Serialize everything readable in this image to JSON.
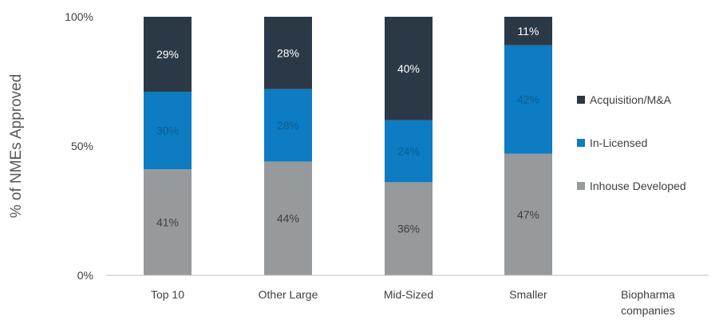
{
  "chart_data": {
    "type": "bar",
    "stacked": true,
    "ylabel": "% of NMEs Approved",
    "ylim": [
      0,
      100
    ],
    "yticks": [
      {
        "value": 0,
        "label": "0%"
      },
      {
        "value": 50,
        "label": "50%"
      },
      {
        "value": 100,
        "label": "100%"
      }
    ],
    "categories": [
      "Top 10",
      "Other Large",
      "Mid-Sized",
      "Smaller"
    ],
    "axis_footer": [
      "Biopharma",
      "companies"
    ],
    "series": [
      {
        "name": "Inhouse Developed",
        "color": "#979a9d",
        "label_color": "#3b3f44",
        "values": [
          41,
          44,
          36,
          47
        ],
        "labels": [
          "41%",
          "44%",
          "36%",
          "47%"
        ]
      },
      {
        "name": "In-Licensed",
        "color": "#0d7cc2",
        "label_color": "#0a5d93",
        "values": [
          30,
          28,
          24,
          42
        ],
        "labels": [
          "30%",
          "28%",
          "24%",
          "42%"
        ]
      },
      {
        "name": "Acquisition/M&A",
        "color": "#2b3947",
        "label_color": "#ffffff",
        "values": [
          29,
          28,
          40,
          11
        ],
        "labels": [
          "29%",
          "28%",
          "40%",
          "11%"
        ]
      }
    ],
    "legend_order": [
      "Acquisition/M&A",
      "In-Licensed",
      "Inhouse Developed"
    ],
    "legend_position": "right",
    "grid": false
  }
}
